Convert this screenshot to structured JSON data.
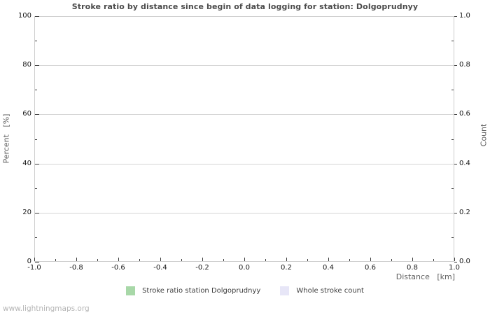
{
  "page": {
    "watermark": "www.lightningmaps.org",
    "background": "#ffffff"
  },
  "chart_data": {
    "type": "bar",
    "title": "Stroke ratio by distance since begin of data logging for station: Dolgoprudnyy",
    "no_data_plotted": true,
    "series": [
      {
        "name": "Stroke ratio station Dolgoprudnyy",
        "axis": "left",
        "color": "#a8d8a8",
        "x": [],
        "y": []
      },
      {
        "name": "Whole stroke count",
        "axis": "right",
        "color": "#e7e6f7",
        "x": [],
        "y": []
      }
    ],
    "x_axis": {
      "label": "Distance   [km]",
      "min": -1.0,
      "max": 1.0,
      "tick_labels": [
        "-1.0",
        "-0.8",
        "-0.6",
        "-0.4",
        "-0.2",
        "0.0",
        "0.2",
        "0.4",
        "0.6",
        "0.8",
        "1.0"
      ],
      "minor_step": 0.1
    },
    "y_axis_left": {
      "label": "Percent   [%]",
      "min": 0,
      "max": 100,
      "tick_labels": [
        "0",
        "20",
        "40",
        "60",
        "80",
        "100"
      ],
      "minor_step": 10
    },
    "y_axis_right": {
      "label": "Count",
      "min": 0.0,
      "max": 1.0,
      "tick_labels": [
        "0.0",
        "0.2",
        "0.4",
        "0.6",
        "0.8",
        "1.0"
      ],
      "minor_step": 0.1
    },
    "grid": {
      "horizontal": true,
      "vertical": false,
      "color": "#d4d4d4"
    },
    "legend_position": "bottom-center",
    "colors": {
      "title": "#4a4a4a",
      "tick_label": "#1a1a1a",
      "axis_title": "#5f5f5f",
      "plot_border": "#cdcdcd",
      "tick_mark": "#3a3a3a",
      "legend_text": "#3f3f3f",
      "watermark": "#b4b4b4"
    }
  }
}
